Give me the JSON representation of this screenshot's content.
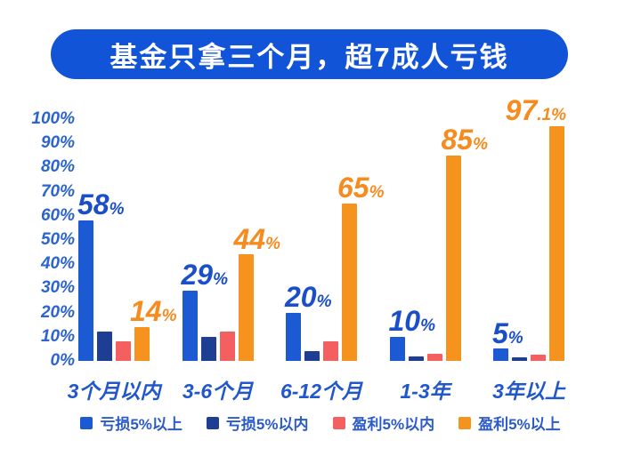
{
  "banner": {
    "title": "基金只拿三个月，超7成人亏钱",
    "bg_color": "#1254d8",
    "text_color": "#ffffff"
  },
  "chart_data": {
    "type": "bar",
    "title": "基金只拿三个月，超7成人亏钱",
    "categories": [
      "3个月以内",
      "3-6个月",
      "6-12个月",
      "1-3年",
      "3年以上"
    ],
    "series": [
      {
        "name": "亏损5%以上",
        "color": "#1b5ad2",
        "values": [
          58,
          29,
          20,
          10,
          5
        ],
        "labels": [
          {
            "main": "58",
            "suffix": "%"
          },
          {
            "main": "29",
            "suffix": "%"
          },
          {
            "main": "20",
            "suffix": "%"
          },
          {
            "main": "10",
            "suffix": "%"
          },
          {
            "main": "5",
            "suffix": "%"
          }
        ]
      },
      {
        "name": "亏损5%以内",
        "color": "#1e3e94",
        "values": [
          12,
          10,
          4,
          2,
          1.5
        ],
        "labels": null
      },
      {
        "name": "盈利5%以内",
        "color": "#f45f60",
        "values": [
          8,
          12,
          8,
          3,
          2.5
        ],
        "labels": null
      },
      {
        "name": "盈利5%以上",
        "color": "#f6931f",
        "values": [
          14,
          44,
          65,
          85,
          97.1
        ],
        "labels": [
          {
            "main": "14",
            "suffix": "%"
          },
          {
            "main": "44",
            "suffix": "%"
          },
          {
            "main": "65",
            "suffix": "%"
          },
          {
            "main": "85",
            "suffix": "%"
          },
          {
            "main": "97",
            "suffix": ".1%"
          }
        ]
      }
    ],
    "yticks": [
      {
        "label": "100%",
        "value": 100
      },
      {
        "label": "90%",
        "value": 90
      },
      {
        "label": "80%",
        "value": 80
      },
      {
        "label": "70%",
        "value": 70
      },
      {
        "label": "60%",
        "value": 60
      },
      {
        "label": "50%",
        "value": 50
      },
      {
        "label": "40%",
        "value": 40
      },
      {
        "label": "30%",
        "value": 30
      },
      {
        "label": "20%",
        "value": 20
      },
      {
        "label": "10%",
        "value": 10
      },
      {
        "label": "0%",
        "value": 0
      }
    ],
    "ylim": [
      0,
      100
    ],
    "grid": false,
    "legend_position": "bottom",
    "label_colors": {
      "loss_labels": "#1b4fca",
      "profit_labels": "#f68b1f"
    },
    "axis_text_color": "#2b63cf"
  }
}
